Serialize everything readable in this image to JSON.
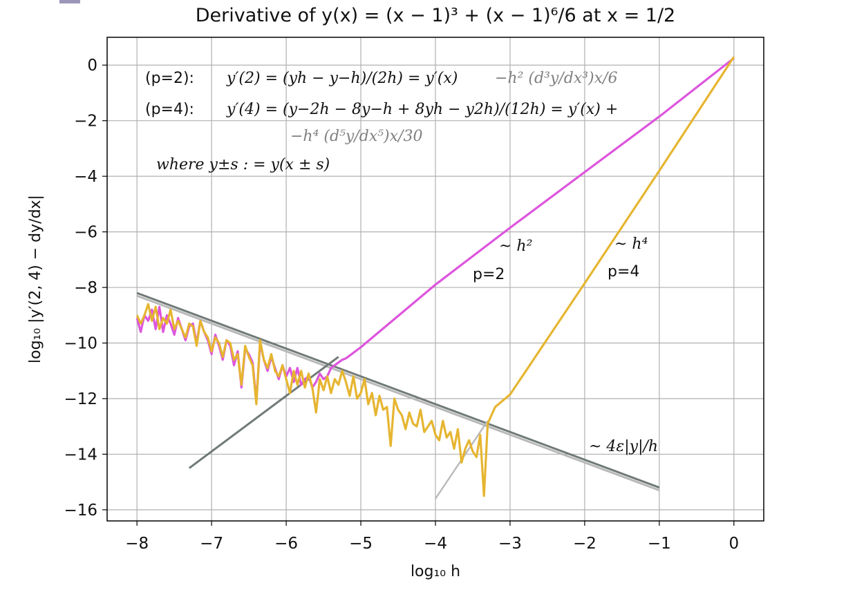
{
  "chart_data": {
    "type": "line",
    "title": "Derivative of  y(x) = (x − 1)³ + (x − 1)⁶/6     at    x = 1/2",
    "xlabel": "log₁₀ h",
    "ylabel": "log₁₀ |y′(2, 4) − dy/dx|",
    "xlim": [
      -8.4,
      0.4
    ],
    "ylim": [
      -16.4,
      1.0
    ],
    "grid": true,
    "x_ticks": [
      -8,
      -7,
      -6,
      -5,
      -4,
      -3,
      -2,
      -1,
      0
    ],
    "x_tick_labels": [
      "−8",
      "−7",
      "−6",
      "−5",
      "−4",
      "−3",
      "−2",
      "−1",
      "0"
    ],
    "y_ticks": [
      0,
      -2,
      -4,
      -6,
      -8,
      -10,
      -12,
      -14,
      -16
    ],
    "y_tick_labels": [
      "0",
      "−2",
      "−4",
      "−6",
      "−8",
      "−10",
      "−12",
      "−14",
      "−16"
    ],
    "annotations": {
      "p2_label": "(p=2):",
      "p2_formula": "y′(2) = (yh − y−h)/(2h) = y′(x)",
      "p2_error": "−h² (d³y/dx³)x/6",
      "p4_label": "(p=4):",
      "p4_formula": "y′(4) = (y−2h − 8y−h + 8yh − y2h)/(12h) = y′(x) +",
      "p4_error": "−h⁴ (d⁵y/dx⁵)x/30",
      "where": "where  y±s : = y(x ± s)",
      "slope_h2": "~ h²",
      "slope_h2_p": "p=2",
      "slope_h4": "~ h⁴",
      "slope_h4_p": "p=4",
      "roundoff": "~ 4ε|y|/h"
    },
    "series": [
      {
        "color": "#dd55dd",
        "x": [
          -8.0,
          -7.95,
          -7.9,
          -7.85,
          -7.8,
          -7.75,
          -7.7,
          -7.65,
          -7.6,
          -7.55,
          -7.5,
          -7.45,
          -7.4,
          -7.35,
          -7.3,
          -7.25,
          -7.2,
          -7.15,
          -7.1,
          -7.05,
          -7.0,
          -6.95,
          -6.9,
          -6.85,
          -6.8,
          -6.75,
          -6.7,
          -6.65,
          -6.6,
          -6.55,
          -6.5,
          -6.45,
          -6.4,
          -6.35,
          -6.3,
          -6.25,
          -6.2,
          -6.15,
          -6.1,
          -6.05,
          -6.0,
          -5.95,
          -5.9,
          -5.85,
          -5.8,
          -5.75,
          -5.7,
          -5.65,
          -5.6,
          -5.55,
          -5.5,
          -5.45,
          -5.4,
          -5.35,
          -5.3,
          -5.25,
          -5.2,
          -5.0,
          -4.0,
          -3.0,
          -2.0,
          -1.0,
          0.0
        ],
        "y": [
          -9.1,
          -9.6,
          -9.0,
          -9.2,
          -8.8,
          -9.5,
          -8.7,
          -9.6,
          -9.0,
          -9.3,
          -9.7,
          -9.1,
          -9.5,
          -9.9,
          -9.4,
          -9.3,
          -10.0,
          -9.2,
          -9.6,
          -9.9,
          -10.4,
          -9.7,
          -10.1,
          -10.6,
          -9.9,
          -10.1,
          -10.8,
          -10.3,
          -11.6,
          -10.2,
          -10.4,
          -10.7,
          -12.1,
          -10.0,
          -10.6,
          -11.0,
          -10.5,
          -10.9,
          -11.3,
          -10.8,
          -11.2,
          -10.9,
          -11.4,
          -10.9,
          -11.5,
          -11.3,
          -11.2,
          -11.6,
          -11.4,
          -11.1,
          -11.3,
          -11.2,
          -10.9,
          -10.8,
          -10.7,
          -10.6,
          -10.55,
          -10.15,
          -7.9,
          -5.85,
          -3.85,
          -1.85,
          0.25
        ]
      },
      {
        "color": "#e6b530",
        "x": [
          -8.0,
          -7.95,
          -7.9,
          -7.85,
          -7.8,
          -7.75,
          -7.7,
          -7.65,
          -7.6,
          -7.55,
          -7.5,
          -7.45,
          -7.4,
          -7.35,
          -7.3,
          -7.25,
          -7.2,
          -7.15,
          -7.1,
          -7.05,
          -7.0,
          -6.95,
          -6.9,
          -6.85,
          -6.8,
          -6.75,
          -6.7,
          -6.65,
          -6.6,
          -6.55,
          -6.5,
          -6.45,
          -6.4,
          -6.35,
          -6.3,
          -6.25,
          -6.2,
          -6.15,
          -6.1,
          -6.05,
          -6.0,
          -5.95,
          -5.9,
          -5.85,
          -5.8,
          -5.75,
          -5.7,
          -5.65,
          -5.6,
          -5.55,
          -5.5,
          -5.45,
          -5.4,
          -5.35,
          -5.3,
          -5.25,
          -5.2,
          -5.15,
          -5.1,
          -5.05,
          -5.0,
          -4.95,
          -4.9,
          -4.85,
          -4.8,
          -4.75,
          -4.7,
          -4.65,
          -4.6,
          -4.55,
          -4.5,
          -4.45,
          -4.4,
          -4.35,
          -4.3,
          -4.25,
          -4.2,
          -4.15,
          -4.1,
          -4.05,
          -4.0,
          -3.95,
          -3.9,
          -3.85,
          -3.8,
          -3.75,
          -3.7,
          -3.65,
          -3.6,
          -3.55,
          -3.5,
          -3.45,
          -3.4,
          -3.35,
          -3.3,
          -3.25,
          -3.2,
          -3.0,
          -2.0,
          -1.0,
          0.0
        ],
        "y": [
          -9.0,
          -9.3,
          -9.0,
          -8.6,
          -9.2,
          -8.7,
          -9.5,
          -9.1,
          -9.3,
          -8.8,
          -9.5,
          -9.2,
          -9.5,
          -9.8,
          -9.3,
          -9.4,
          -10.1,
          -9.2,
          -9.6,
          -9.8,
          -10.3,
          -9.8,
          -10.0,
          -10.5,
          -9.9,
          -10.0,
          -10.6,
          -10.4,
          -11.5,
          -10.1,
          -10.5,
          -10.8,
          -12.2,
          -9.9,
          -10.6,
          -10.9,
          -10.4,
          -11.0,
          -11.2,
          -10.8,
          -11.3,
          -11.8,
          -11.0,
          -11.5,
          -11.0,
          -11.6,
          -11.1,
          -11.6,
          -12.5,
          -11.3,
          -11.7,
          -11.2,
          -11.8,
          -11.3,
          -11.5,
          -11.0,
          -11.4,
          -11.9,
          -11.2,
          -12.0,
          -11.8,
          -11.3,
          -12.2,
          -11.8,
          -12.6,
          -11.9,
          -12.4,
          -12.3,
          -13.7,
          -12.0,
          -12.4,
          -12.6,
          -13.1,
          -12.5,
          -12.9,
          -13.0,
          -12.4,
          -13.2,
          -13.0,
          -12.8,
          -13.3,
          -13.5,
          -12.8,
          -13.4,
          -13.2,
          -13.8,
          -13.1,
          -14.3,
          -13.8,
          -13.5,
          -13.9,
          -14.1,
          -13.3,
          -15.5,
          -12.9,
          -12.6,
          -12.3,
          -11.85,
          -7.85,
          -3.8,
          0.3
        ]
      },
      {
        "color": "#707a78",
        "x": [
          -8.0,
          -1.0
        ],
        "y": [
          -8.2,
          -15.2
        ]
      },
      {
        "color": "#b8b8b8",
        "x": [
          -8.0,
          -1.0
        ],
        "y": [
          -8.3,
          -15.3
        ]
      },
      {
        "color": "#707a78",
        "x": [
          -7.3,
          -5.3
        ],
        "y": [
          -14.5,
          -10.5
        ]
      },
      {
        "color": "#b8b8b8",
        "x": [
          -4.0,
          -3.3
        ],
        "y": [
          -15.6,
          -12.8
        ]
      }
    ]
  }
}
